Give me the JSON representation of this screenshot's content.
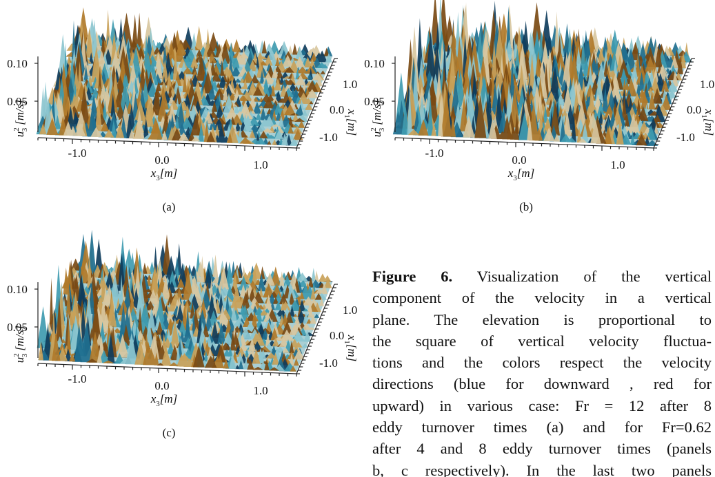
{
  "figure": {
    "panels": [
      {
        "label": "(a)",
        "y_ticks": [
          "0.10",
          "0.05"
        ],
        "x3_ticks": [
          "-1.0",
          "0.0",
          "1.0"
        ],
        "x1_ticks": [
          "1.0",
          "0.0",
          "-1.0"
        ],
        "y_label": {
          "symbol": "u",
          "sub": "3",
          "sup": "2",
          "unit": "[m/s]"
        },
        "x3_label": {
          "symbol": "x",
          "sub": "3",
          "unit": "[m]"
        },
        "x1_label": {
          "symbol": "x",
          "sub": "1",
          "unit": "[m]"
        }
      },
      {
        "label": "(b)",
        "y_ticks": [
          "0.10",
          "0.05"
        ],
        "x3_ticks": [
          "-1.0",
          "0.0",
          "1.0"
        ],
        "x1_ticks": [
          "1.0",
          "0.0",
          "-1.0"
        ],
        "y_label": {
          "symbol": "u",
          "sub": "3",
          "sup": "2",
          "unit": "[m/s]"
        },
        "x3_label": {
          "symbol": "x",
          "sub": "3",
          "unit": "[m]"
        },
        "x1_label": {
          "symbol": "x",
          "sub": "1",
          "unit": "[m]"
        }
      },
      {
        "label": "(c)",
        "y_ticks": [
          "0.10",
          "0.05"
        ],
        "x3_ticks": [
          "-1.0",
          "0.0",
          "1.0"
        ],
        "x1_ticks": [
          "1.0",
          "0.0",
          "-1.0"
        ],
        "y_label": {
          "symbol": "u",
          "sub": "3",
          "sup": "2",
          "unit": "[m/s]"
        },
        "x3_label": {
          "symbol": "x",
          "sub": "3",
          "unit": "[m]"
        },
        "x1_label": {
          "symbol": "x",
          "sub": "1",
          "unit": "[m]"
        }
      }
    ]
  },
  "caption": {
    "label": "Figure 6.",
    "lines": [
      "Visualization of the vertical",
      "component of the velocity in a vertical",
      "plane. The elevation is proportional to",
      "the square of vertical velocity fluctua-",
      "tions and the colors respect the velocity",
      "directions (blue for downward , red for",
      "upward) in various case: Fr = 12 after 8",
      "eddy turnover times (a) and for Fr=0.62",
      "after 4 and 8 eddy turnover times (panels",
      "b, c respectively). In the last two panels"
    ]
  }
}
